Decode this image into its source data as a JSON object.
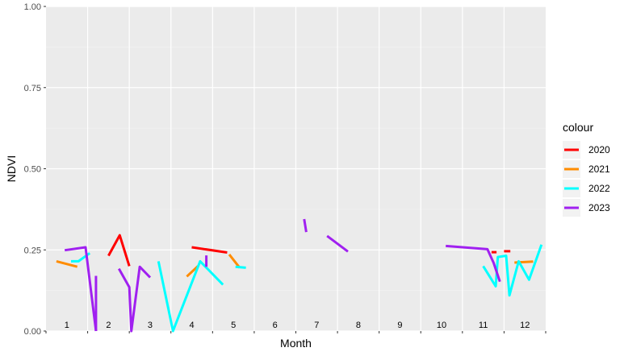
{
  "chart_data": {
    "type": "line",
    "title": "",
    "xlabel": "Month",
    "ylabel": "NDVI",
    "ylim": [
      0,
      1
    ],
    "xlim": [
      0.5,
      12.5
    ],
    "yticks": [
      "0.00",
      "0.25",
      "0.50",
      "0.75",
      "1.00"
    ],
    "ytick_values": [
      0,
      0.25,
      0.5,
      0.75,
      1.0
    ],
    "month_labels": [
      "1",
      "2",
      "3",
      "4",
      "5",
      "6",
      "7",
      "8",
      "9",
      "10",
      "11",
      "12"
    ],
    "grid": true,
    "legend": {
      "title": "colour",
      "placement": "right"
    },
    "series": [
      {
        "name": "2020",
        "color": "#ff0000",
        "segments": [
          [
            [
              2.0,
              0.232
            ],
            [
              2.27,
              0.295
            ],
            [
              2.5,
              0.2
            ]
          ],
          [
            [
              4.0,
              0.258
            ],
            [
              4.85,
              0.242
            ]
          ],
          [
            [
              11.2,
              0.243
            ],
            [
              11.32,
              0.243
            ]
          ],
          [
            [
              11.5,
              0.246
            ],
            [
              11.65,
              0.246
            ]
          ]
        ]
      },
      {
        "name": "2021",
        "color": "#ff8c00",
        "segments": [
          [
            [
              0.75,
              0.215
            ],
            [
              1.25,
              0.198
            ]
          ],
          [
            [
              3.88,
              0.168
            ],
            [
              4.15,
              0.2
            ]
          ],
          [
            [
              4.9,
              0.236
            ],
            [
              5.15,
              0.195
            ]
          ],
          [
            [
              11.75,
              0.211
            ],
            [
              12.2,
              0.214
            ]
          ]
        ]
      },
      {
        "name": "2022",
        "color": "#00ffff",
        "segments": [
          [
            [
              1.1,
              0.215
            ],
            [
              1.28,
              0.215
            ],
            [
              1.55,
              0.24
            ]
          ],
          [
            [
              3.2,
              0.215
            ],
            [
              3.55,
              0.0
            ],
            [
              4.2,
              0.215
            ],
            [
              4.75,
              0.143
            ]
          ],
          [
            [
              5.05,
              0.198
            ],
            [
              5.3,
              0.195
            ]
          ],
          [
            [
              11.0,
              0.2
            ],
            [
              11.3,
              0.138
            ],
            [
              11.35,
              0.228
            ],
            [
              11.55,
              0.232
            ],
            [
              11.63,
              0.11
            ],
            [
              11.85,
              0.215
            ],
            [
              12.1,
              0.158
            ],
            [
              12.4,
              0.266
            ]
          ]
        ]
      },
      {
        "name": "2023",
        "color": "#a020f0",
        "segments": [
          [
            [
              0.95,
              0.249
            ],
            [
              1.45,
              0.258
            ],
            [
              1.7,
              0.0
            ]
          ],
          [
            [
              1.7,
              0.17
            ],
            [
              1.7,
              0.0
            ]
          ],
          [
            [
              2.25,
              0.192
            ],
            [
              2.5,
              0.135
            ],
            [
              2.55,
              0.0
            ],
            [
              2.75,
              0.198
            ],
            [
              3.0,
              0.165
            ]
          ],
          [
            [
              4.35,
              0.233
            ],
            [
              4.35,
              0.198
            ]
          ],
          [
            [
              6.7,
              0.345
            ],
            [
              6.75,
              0.305
            ]
          ],
          [
            [
              7.25,
              0.293
            ],
            [
              7.75,
              0.245
            ]
          ],
          [
            [
              10.1,
              0.262
            ],
            [
              11.1,
              0.252
            ],
            [
              11.25,
              0.21
            ],
            [
              11.4,
              0.152
            ]
          ]
        ]
      }
    ]
  }
}
